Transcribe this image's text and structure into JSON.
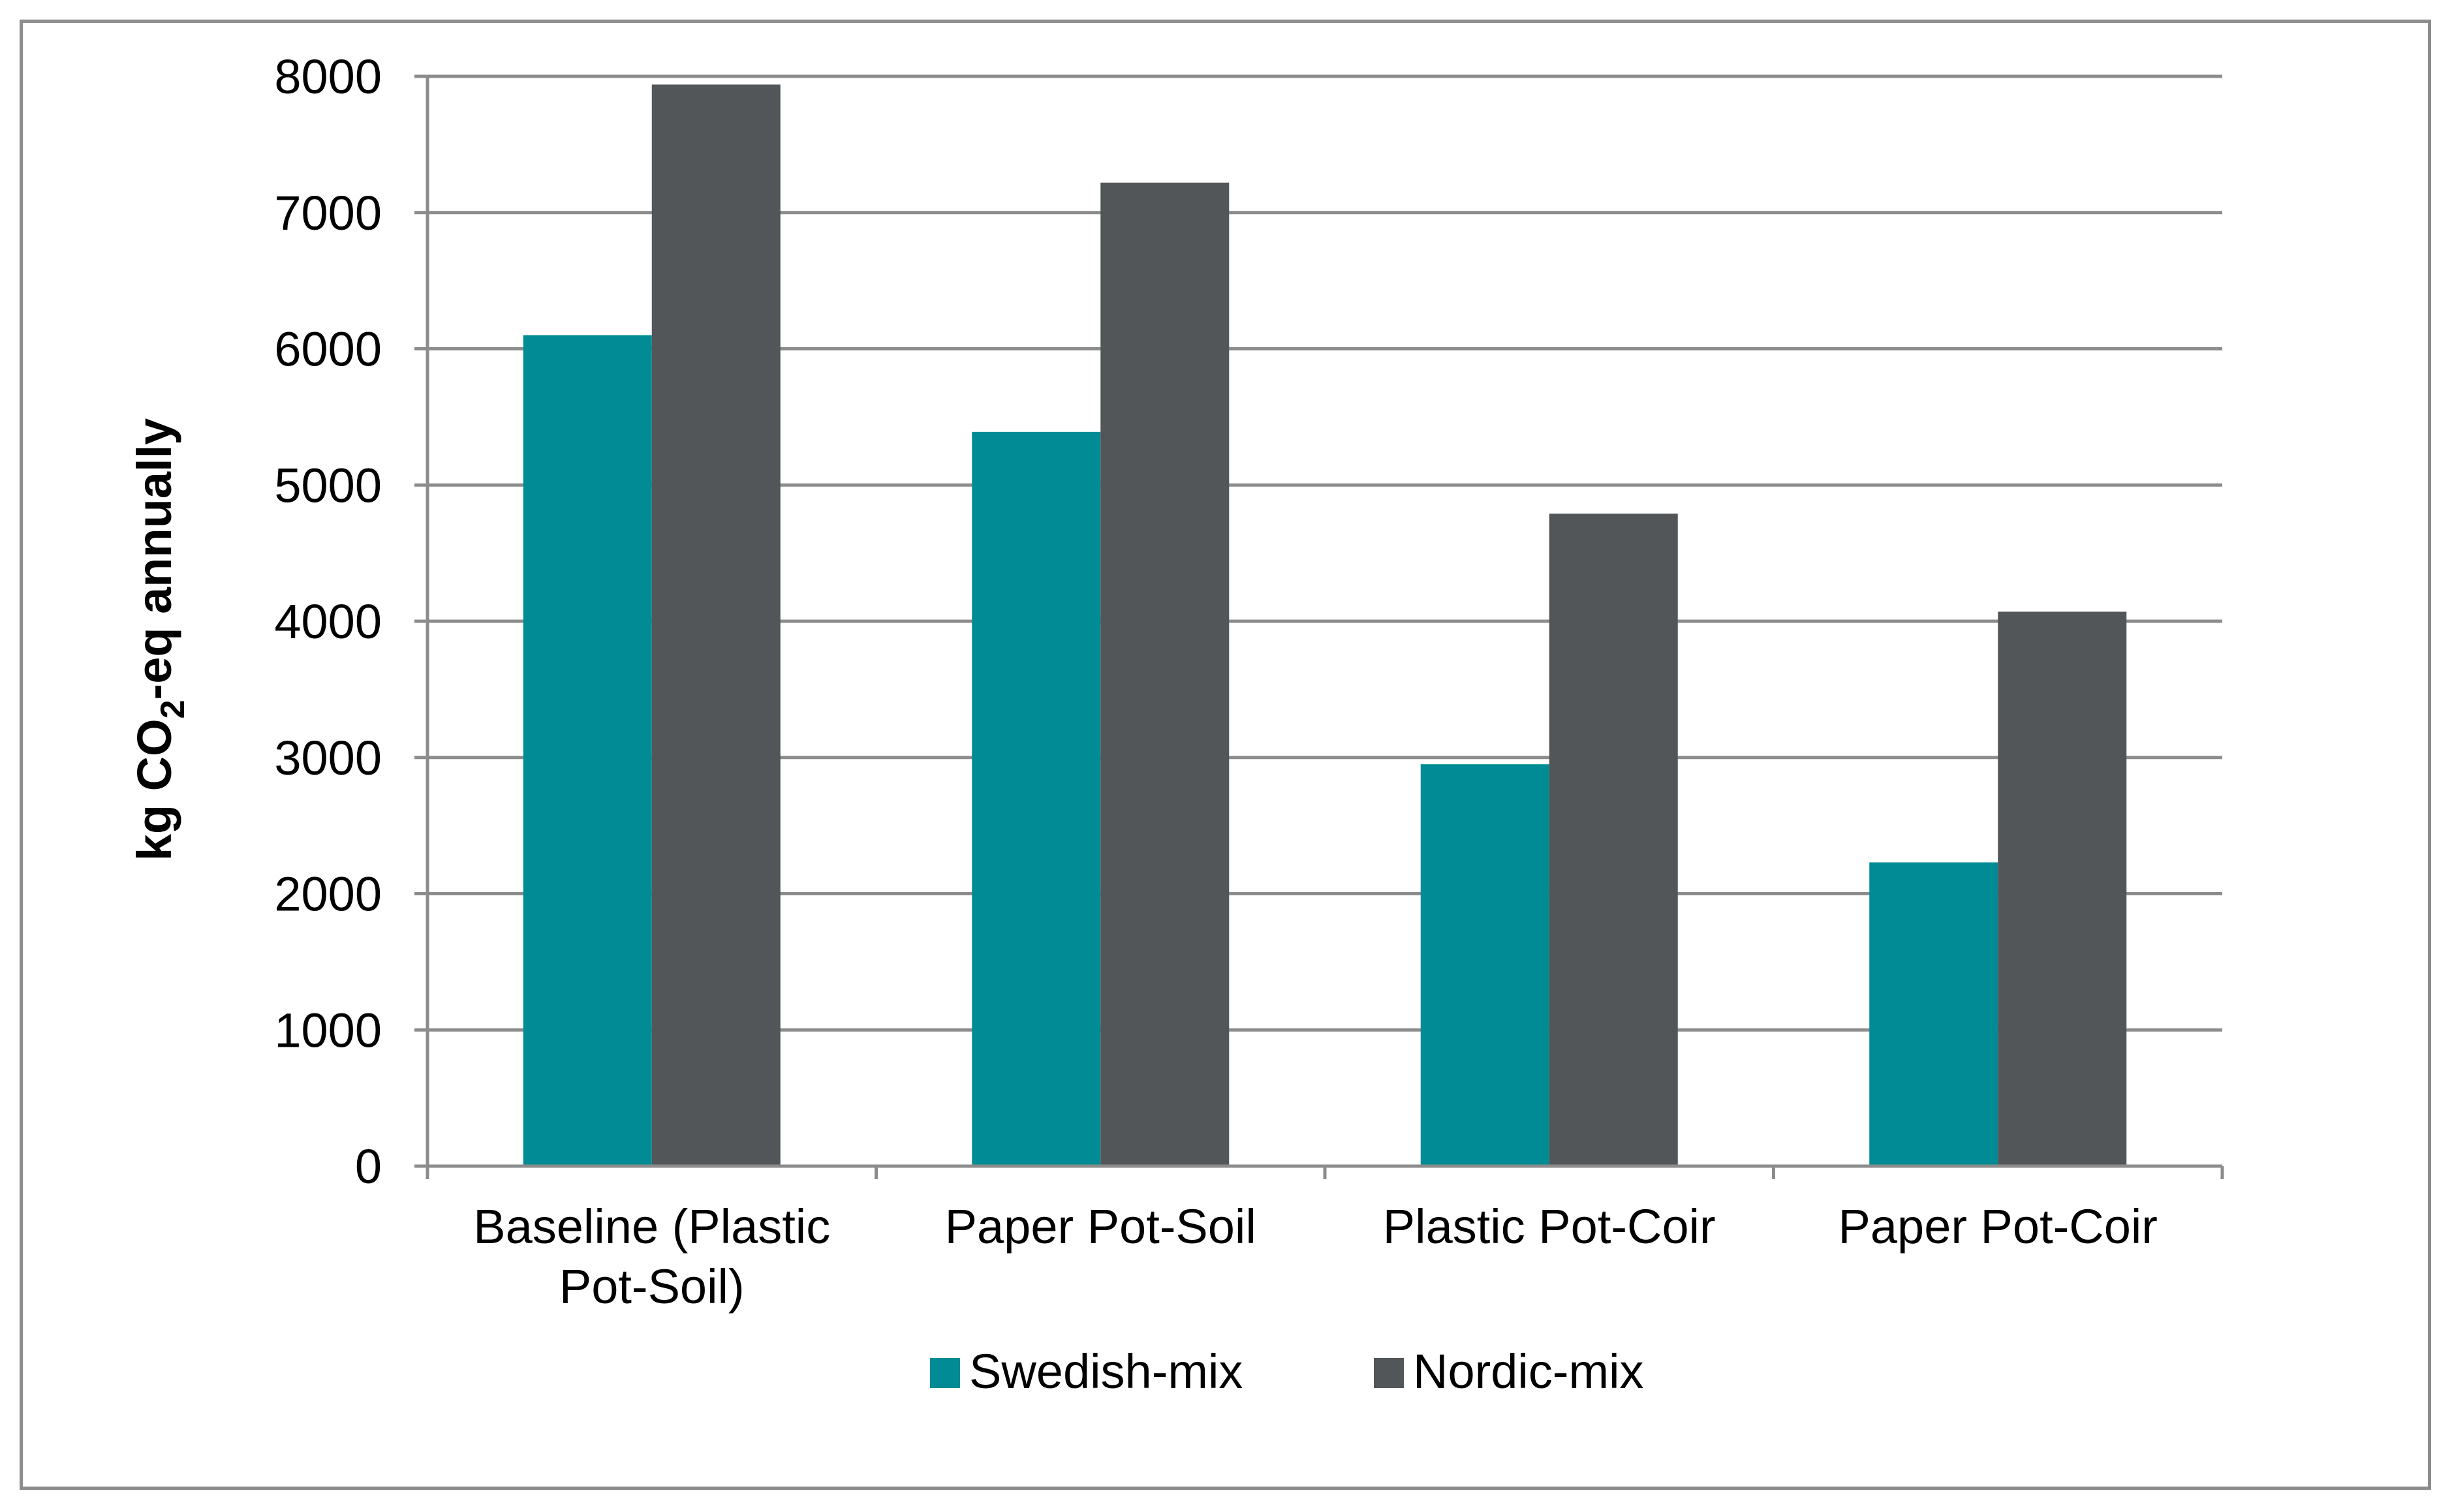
{
  "chart_data": {
    "type": "bar",
    "title": "",
    "xlabel": "",
    "ylabel": "kg CO2-eq annually",
    "ylabel_parts": {
      "pre": "kg CO",
      "sub": "2",
      "post": "-eq annually"
    },
    "categories": [
      [
        "Baseline (Plastic",
        "Pot-Soil)"
      ],
      [
        "Paper Pot-Soil"
      ],
      [
        "Plastic Pot-Coir"
      ],
      [
        "Paper Pot-Coir"
      ]
    ],
    "series": [
      {
        "name": "Swedish-mix",
        "color": "#008b95",
        "values": [
          6100,
          5390,
          2950,
          2230
        ]
      },
      {
        "name": "Nordic-mix",
        "color": "#535659",
        "values": [
          7940,
          7220,
          4790,
          4070
        ]
      }
    ],
    "ylim": [
      0,
      8000
    ],
    "yticks": [
      "0",
      "1000",
      "2000",
      "3000",
      "4000",
      "5000",
      "6000",
      "7000",
      "8000"
    ],
    "grid": true,
    "legend_position": "bottom"
  }
}
